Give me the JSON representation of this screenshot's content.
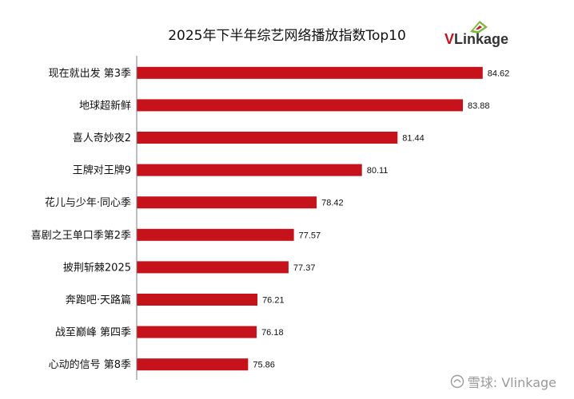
{
  "brand": {
    "logo_v": "V",
    "logo_rest": "Linkage",
    "watermark": "雪球: Vlinkage"
  },
  "colors": {
    "bar": "#c6121a",
    "axis": "#7f7f7f",
    "text": "#111111"
  },
  "chart_data": {
    "type": "bar",
    "orientation": "horizontal",
    "title": "2025年下半年综艺网络播放指数Top10",
    "categories": [
      "现在就出发 第3季",
      "地球超新鲜",
      "喜人奇妙夜2",
      "王牌对王牌9",
      "花儿与少年·同心季",
      "喜剧之王单口季第2季",
      "披荆斩棘2025",
      "奔跑吧·天路篇",
      "战至巅峰 第四季",
      "心动的信号 第8季"
    ],
    "values": [
      84.62,
      83.88,
      81.44,
      80.11,
      78.42,
      77.57,
      77.37,
      76.21,
      76.18,
      75.86
    ],
    "value_labels": [
      "84.62",
      "83.88",
      "81.44",
      "80.11",
      "78.42",
      "77.57",
      "77.37",
      "76.21",
      "76.18",
      "75.86"
    ],
    "xlim": [
      71.7,
      86.0
    ],
    "grid": false,
    "legend": "none"
  }
}
